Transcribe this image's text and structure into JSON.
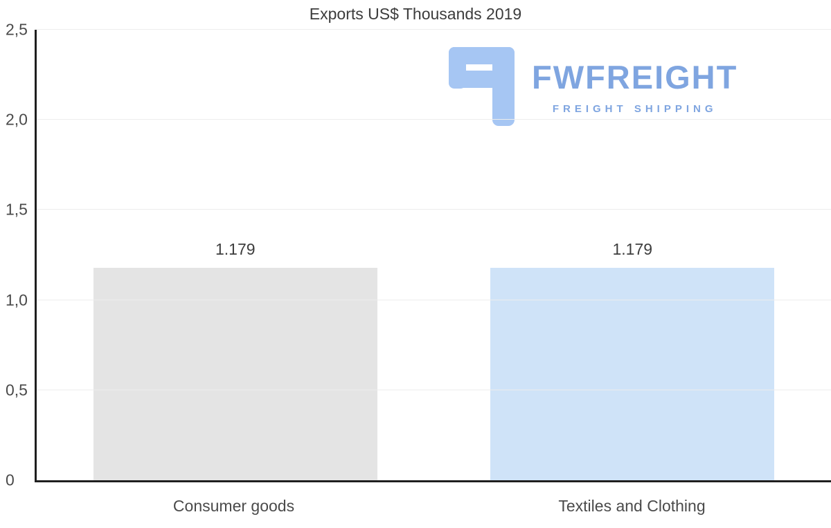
{
  "chart_data": {
    "type": "bar",
    "title": "Exports US$ Thousands 2019",
    "categories": [
      "Consumer goods",
      "Textiles and Clothing"
    ],
    "values": [
      1.179,
      1.179
    ],
    "value_labels": [
      "1.179",
      "1.179"
    ],
    "series_colors": [
      "#e4e4e4",
      "#cfe3f8"
    ],
    "ylim": [
      0,
      2.5
    ],
    "yticks": [
      0,
      0.5,
      1.0,
      1.5,
      2.0,
      2.5
    ],
    "ytick_labels": [
      "0",
      "0,5",
      "1,0",
      "1,5",
      "2,0",
      "2,5"
    ],
    "xlabel": "",
    "ylabel": "",
    "grid": true,
    "legend": "none"
  },
  "watermark": {
    "brand": "FWFREIGHT",
    "tagline": "FREIGHT SHIPPING",
    "icon": "fwfreight-f-icon",
    "brand_color": "#7fa5e0",
    "icon_color": "#a6c6f3"
  }
}
